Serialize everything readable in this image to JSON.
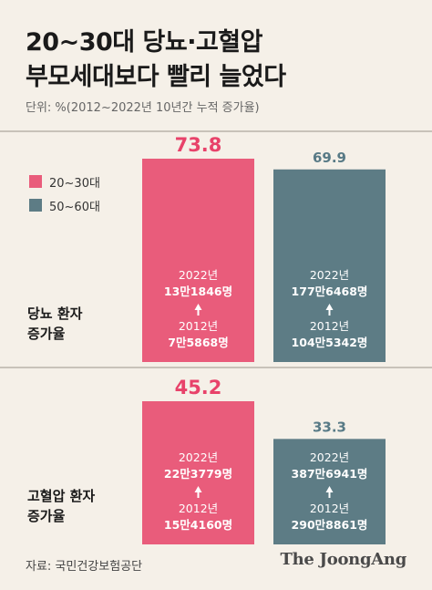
{
  "title_line1": "20~30대 당뇨·고혈압",
  "title_line2": "부모세대보다 빨리 늘었다",
  "unit": "단위: %(2012~2022년 10년간 누적 증가율)",
  "source": "자료: 국민건강보험공단",
  "logo": "The JoongAng",
  "colors": {
    "pink": "#e95c7b",
    "gray": "#5d7c85",
    "pink_text": "#e8426a",
    "gray_text": "#587a86",
    "background": "#f5f0e8"
  },
  "chart_data": {
    "type": "bar",
    "categories": [
      "당뇨 환자 증가율",
      "고혈압 환자 증가율"
    ],
    "series": [
      {
        "name": "20~30대",
        "values": [
          73.8,
          45.2
        ]
      },
      {
        "name": "50~60대",
        "values": [
          69.9,
          33.3
        ]
      }
    ],
    "panels": [
      {
        "label_lines": [
          "당뇨 환자",
          "증가율"
        ],
        "bars": [
          {
            "value": 73.8,
            "value_label": "73.8",
            "year_top": "2022년",
            "count_top": "13만1846명",
            "year_bottom": "2012년",
            "count_bottom": "7만5868명"
          },
          {
            "value": 69.9,
            "value_label": "69.9",
            "year_top": "2022년",
            "count_top": "177만6468명",
            "year_bottom": "2012년",
            "count_bottom": "104만5342명"
          }
        ]
      },
      {
        "label_lines": [
          "고혈압 환자",
          "증가율"
        ],
        "bars": [
          {
            "value": 45.2,
            "value_label": "45.2",
            "year_top": "2022년",
            "count_top": "22만3779명",
            "year_bottom": "2012년",
            "count_bottom": "15만4160명"
          },
          {
            "value": 33.3,
            "value_label": "33.3",
            "year_top": "2022년",
            "count_top": "387만6941명",
            "year_bottom": "2012년",
            "count_bottom": "290만8861명"
          }
        ]
      }
    ]
  }
}
